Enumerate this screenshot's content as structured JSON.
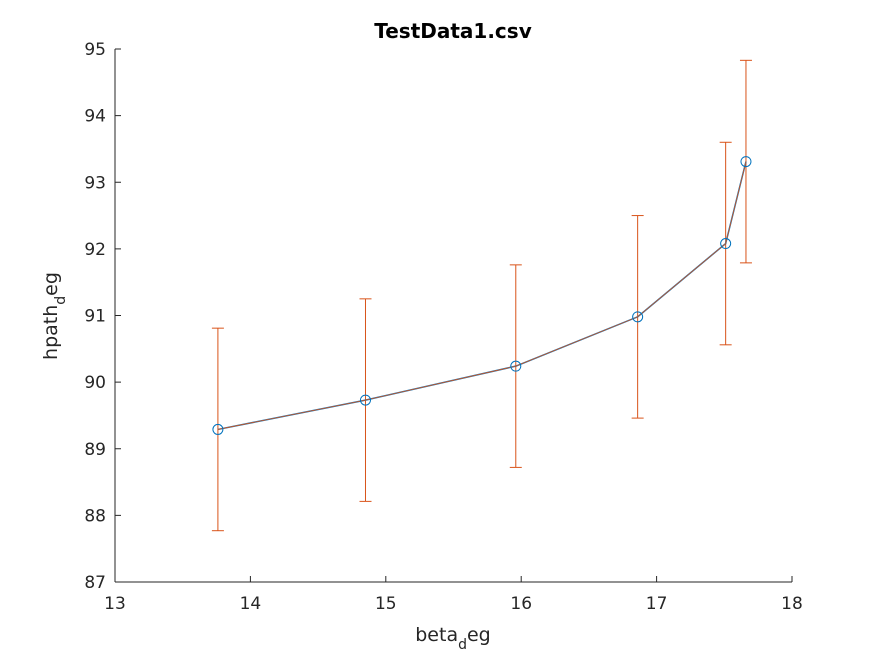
{
  "chart_data": {
    "type": "line",
    "title": "TestData1.csv",
    "xlabel": {
      "base": "beta",
      "sub": "d",
      "tail": "eg"
    },
    "ylabel": {
      "base": "hpath",
      "sub": "d",
      "tail": "eg"
    },
    "xlim": [
      13,
      18
    ],
    "ylim": [
      87,
      95
    ],
    "xticks": [
      13,
      14,
      15,
      16,
      17,
      18
    ],
    "yticks": [
      87,
      88,
      89,
      90,
      91,
      92,
      93,
      94,
      95
    ],
    "grid": false,
    "legend": "none",
    "colors": {
      "line": "#0072bd",
      "errorbar": "#d95319",
      "marker": "#0072bd",
      "axis": "#262626"
    },
    "series": [
      {
        "x": [
          13.76,
          14.85,
          15.96,
          16.86,
          17.51,
          17.66
        ],
        "y": [
          89.29,
          89.73,
          90.24,
          90.98,
          92.08,
          93.31
        ],
        "err": [
          1.52,
          1.52,
          1.52,
          1.52,
          1.52,
          1.52
        ]
      }
    ]
  }
}
